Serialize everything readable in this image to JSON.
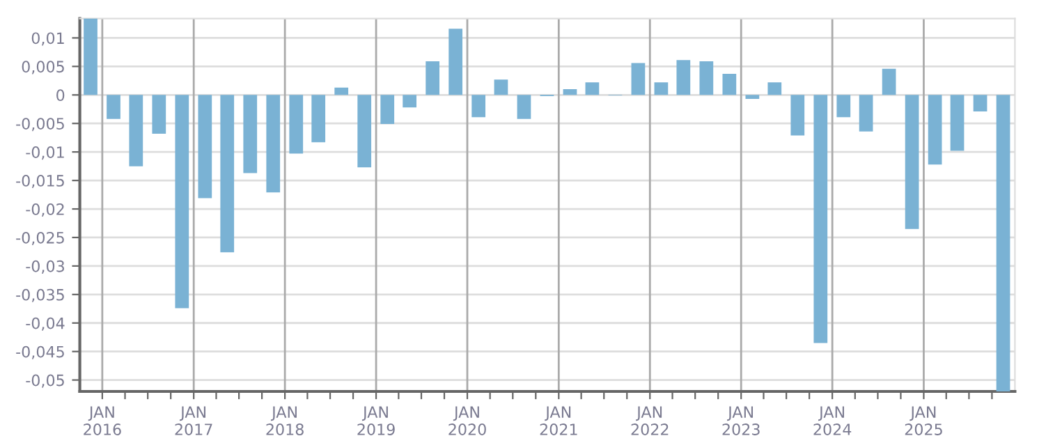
{
  "chart_data": {
    "type": "bar",
    "x": [
      "2015-11-15",
      "2016-02-15",
      "2016-05-15",
      "2016-08-15",
      "2016-11-15",
      "2017-02-15",
      "2017-05-15",
      "2017-08-15",
      "2017-11-15",
      "2018-02-15",
      "2018-05-15",
      "2018-08-15",
      "2018-11-15",
      "2019-02-15",
      "2019-05-15",
      "2019-08-15",
      "2019-11-15",
      "2020-02-15",
      "2020-05-15",
      "2020-08-15",
      "2020-11-15",
      "2021-02-15",
      "2021-05-15",
      "2021-08-15",
      "2021-11-15",
      "2022-02-15",
      "2022-05-15",
      "2022-08-15",
      "2022-11-15",
      "2023-02-15",
      "2023-05-15",
      "2023-08-15",
      "2023-11-15",
      "2024-02-15",
      "2024-05-15",
      "2024-08-15",
      "2024-11-15",
      "2025-02-15",
      "2025-05-15",
      "2025-08-15",
      "2025-11-15"
    ],
    "values": [
      0.0134,
      -0.0042,
      -0.0125,
      -0.0068,
      -0.0374,
      -0.0181,
      -0.0276,
      -0.0137,
      -0.0171,
      -0.0103,
      -0.0083,
      0.0013,
      -0.0127,
      -0.0051,
      -0.0022,
      0.0059,
      0.0116,
      -0.0039,
      0.0027,
      -0.0042,
      -0.0002,
      0.001,
      0.0022,
      -0.0001,
      0.0056,
      0.0022,
      0.0061,
      0.0059,
      0.0037,
      -0.0007,
      0.0022,
      -0.0071,
      -0.0435,
      -0.0039,
      -0.0064,
      0.0046,
      -0.0235,
      -0.0122,
      -0.0098,
      -0.0029,
      -0.052
    ],
    "color": "#7ab2d4",
    "xlim": [
      "2015-10-03",
      "2026-01-01"
    ],
    "xticks": [
      {
        "value": "2016-01",
        "label": "JAN\n2016"
      },
      {
        "value": "2016-04",
        "label": null
      },
      {
        "value": "2016-07",
        "label": null
      },
      {
        "value": "2016-10",
        "label": null
      },
      {
        "value": "2017-01",
        "label": "JAN\n2017"
      },
      {
        "value": "2017-04",
        "label": null
      },
      {
        "value": "2017-07",
        "label": null
      },
      {
        "value": "2017-10",
        "label": null
      },
      {
        "value": "2018-01",
        "label": "JAN\n2018"
      },
      {
        "value": "2018-04",
        "label": null
      },
      {
        "value": "2018-07",
        "label": null
      },
      {
        "value": "2018-10",
        "label": null
      },
      {
        "value": "2019-01",
        "label": "JAN\n2019"
      },
      {
        "value": "2019-04",
        "label": null
      },
      {
        "value": "2019-07",
        "label": null
      },
      {
        "value": "2019-10",
        "label": null
      },
      {
        "value": "2020-01",
        "label": "JAN\n2020"
      },
      {
        "value": "2020-04",
        "label": null
      },
      {
        "value": "2020-07",
        "label": null
      },
      {
        "value": "2020-10",
        "label": null
      },
      {
        "value": "2021-01",
        "label": "JAN\n2021"
      },
      {
        "value": "2021-04",
        "label": null
      },
      {
        "value": "2021-07",
        "label": null
      },
      {
        "value": "2021-10",
        "label": null
      },
      {
        "value": "2022-01",
        "label": "JAN\n2022"
      },
      {
        "value": "2022-04",
        "label": null
      },
      {
        "value": "2022-07",
        "label": null
      },
      {
        "value": "2022-10",
        "label": null
      },
      {
        "value": "2023-01",
        "label": "JAN\n2023"
      },
      {
        "value": "2023-04",
        "label": null
      },
      {
        "value": "2023-07",
        "label": null
      },
      {
        "value": "2023-10",
        "label": null
      },
      {
        "value": "2024-01",
        "label": "JAN\n2024"
      },
      {
        "value": "2024-04",
        "label": null
      },
      {
        "value": "2024-07",
        "label": null
      },
      {
        "value": "2024-10",
        "label": null
      },
      {
        "value": "2025-01",
        "label": "JAN\n2025"
      },
      {
        "value": "2025-04",
        "label": null
      },
      {
        "value": "2025-07",
        "label": null
      },
      {
        "value": "2025-10",
        "label": null
      }
    ],
    "ylim": [
      -0.052,
      0.0134
    ],
    "yticks": [
      {
        "value": 0.01,
        "label": "0,01"
      },
      {
        "value": 0.005,
        "label": "0,005"
      },
      0,
      {
        "value": -0.005,
        "label": "-0,005"
      },
      {
        "value": -0.01,
        "label": "-0,01"
      },
      {
        "value": -0.015,
        "label": "-0,015"
      },
      {
        "value": -0.02,
        "label": "-0,02"
      },
      {
        "value": -0.025,
        "label": "-0,025"
      },
      {
        "value": -0.03,
        "label": "-0,03"
      },
      {
        "value": -0.035,
        "label": "-0,035"
      },
      {
        "value": -0.04,
        "label": "-0,04"
      },
      {
        "value": -0.045,
        "label": "-0,045"
      },
      {
        "value": -0.05,
        "label": "-0,05"
      }
    ],
    "grid": true
  }
}
